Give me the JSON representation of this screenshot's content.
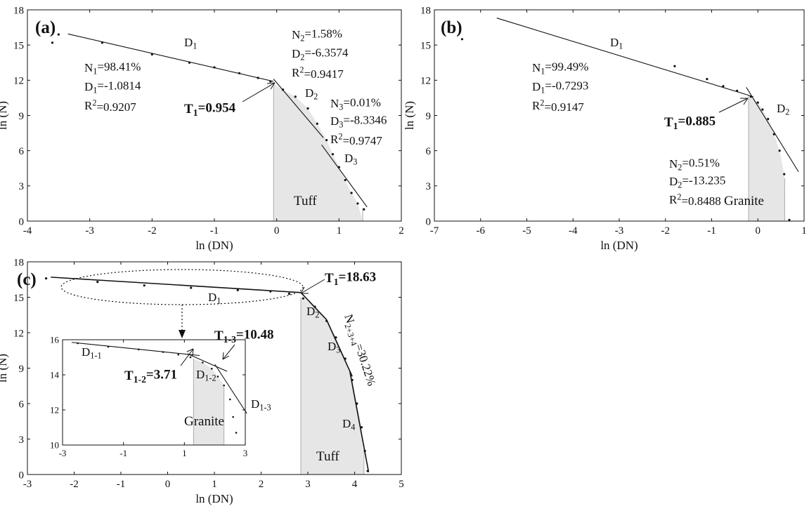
{
  "chart_data": [
    {
      "panel": "(a)",
      "type": "line",
      "xlabel": "ln (DN)",
      "ylabel": "ln (N)",
      "xlim": [
        -4,
        2
      ],
      "ylim": [
        0,
        18
      ],
      "xticks": [
        "-4",
        "-3",
        "-2",
        "-1",
        "0",
        "1",
        "2"
      ],
      "yticks": [
        "0",
        "3",
        "6",
        "9",
        "12",
        "15",
        "18"
      ],
      "points": [
        [
          -3.6,
          15.2
        ],
        [
          -3.5,
          15.9
        ],
        [
          -2.8,
          15.2
        ],
        [
          -2.0,
          14.2
        ],
        [
          -1.4,
          13.5
        ],
        [
          -1.0,
          13.1
        ],
        [
          -0.6,
          12.6
        ],
        [
          -0.3,
          12.2
        ],
        [
          -0.1,
          11.9
        ],
        [
          0.1,
          11.2
        ],
        [
          0.3,
          10.6
        ],
        [
          0.5,
          9.6
        ],
        [
          0.65,
          8.3
        ],
        [
          0.8,
          6.9
        ],
        [
          0.9,
          5.7
        ],
        [
          1.0,
          4.6
        ],
        [
          1.1,
          3.5
        ],
        [
          1.2,
          2.4
        ],
        [
          1.3,
          1.5
        ],
        [
          1.4,
          1.0
        ]
      ],
      "fits": [
        {
          "name": "D1",
          "x": [
            -3.35,
            -0.05
          ],
          "y": [
            15.95,
            11.9
          ]
        },
        {
          "name": "D2",
          "x": [
            -0.05,
            0.75
          ],
          "y": [
            12.1,
            7.1
          ]
        },
        {
          "name": "D3",
          "x": [
            0.72,
            1.45
          ],
          "y": [
            6.5,
            1.2
          ]
        }
      ],
      "threshold": {
        "label": "T1=0.954",
        "x": -0.05,
        "y": 11.9
      },
      "shade": {
        "x": [
          -0.05,
          1.38
        ],
        "rock": "Tuff"
      },
      "annotations": {
        "d1_label": "D1",
        "d2_label": "D2",
        "d3_label": "D3",
        "block1": [
          "N1=98.41%",
          "D1=-1.0814",
          "R2=0.9207"
        ],
        "block2": [
          "N2=1.58%",
          "D2=-6.3574",
          "R2=0.9417"
        ],
        "block3": [
          "N3=0.01%",
          "D3=-8.3346",
          "R2=0.9747"
        ]
      }
    },
    {
      "panel": "(b)",
      "type": "line",
      "xlabel": "ln (DN)",
      "ylabel": "ln (N)",
      "xlim": [
        -7,
        1
      ],
      "ylim": [
        0,
        18
      ],
      "xticks": [
        "-7",
        "-6",
        "-5",
        "-4",
        "-3",
        "-2",
        "-1",
        "0",
        "1"
      ],
      "yticks": [
        "0",
        "3",
        "6",
        "9",
        "12",
        "15",
        "18"
      ],
      "points": [
        [
          -6.4,
          15.5
        ],
        [
          -1.8,
          13.2
        ],
        [
          -1.1,
          12.1
        ],
        [
          -0.75,
          11.5
        ],
        [
          -0.45,
          11.1
        ],
        [
          -0.15,
          10.6
        ],
        [
          0.0,
          10.1
        ],
        [
          0.1,
          9.5
        ],
        [
          0.22,
          8.7
        ],
        [
          0.35,
          7.4
        ],
        [
          0.47,
          6.0
        ],
        [
          0.57,
          4.0
        ],
        [
          0.68,
          0.1
        ]
      ],
      "fits": [
        {
          "name": "D1",
          "x": [
            -5.65,
            -0.1
          ],
          "y": [
            17.3,
            10.6
          ]
        },
        {
          "name": "D2",
          "x": [
            -0.25,
            0.88
          ],
          "y": [
            11.4,
            4.2
          ]
        }
      ],
      "threshold": {
        "label": "T1=0.885",
        "x": -0.15,
        "y": 10.5
      },
      "shade": {
        "x": [
          -0.2,
          0.58
        ],
        "rock": "Granite"
      },
      "annotations": {
        "d1_label": "D1",
        "d2_label": "D2",
        "block1": [
          "N1=99.49%",
          "D1=-0.7293",
          "R2=0.9147"
        ],
        "block2": [
          "N2=0.51%",
          "D2=-13.235",
          "R2=0.8488"
        ]
      }
    },
    {
      "panel": "(c)",
      "type": "line",
      "xlabel": "ln (DN)",
      "ylabel": "ln (N)",
      "xlim": [
        -3,
        5
      ],
      "ylim": [
        0,
        18
      ],
      "xticks": [
        "-3",
        "-2",
        "-1",
        "0",
        "1",
        "2",
        "3",
        "4",
        "5"
      ],
      "yticks": [
        "0",
        "3",
        "6",
        "9",
        "12",
        "15",
        "18"
      ],
      "points": [
        [
          -2.6,
          16.6
        ],
        [
          -1.5,
          16.3
        ],
        [
          -0.5,
          16.0
        ],
        [
          0.5,
          15.8
        ],
        [
          1.5,
          15.6
        ],
        [
          2.2,
          15.5
        ],
        [
          2.6,
          15.3
        ],
        [
          2.9,
          14.9
        ],
        [
          3.15,
          14.2
        ],
        [
          3.4,
          13.0
        ],
        [
          3.6,
          11.6
        ],
        [
          3.8,
          9.8
        ],
        [
          3.95,
          8.0
        ],
        [
          4.05,
          6.0
        ],
        [
          4.15,
          4.0
        ],
        [
          4.22,
          2.0
        ],
        [
          4.28,
          0.3
        ]
      ],
      "fits": [
        {
          "name": "D1",
          "x": [
            -2.5,
            2.85
          ],
          "y": [
            16.7,
            15.4
          ]
        },
        {
          "name": "D2",
          "x": [
            2.85,
            3.4
          ],
          "y": [
            15.4,
            13.1
          ]
        },
        {
          "name": "D3",
          "x": [
            3.4,
            3.95
          ],
          "y": [
            13.1,
            8.3
          ]
        },
        {
          "name": "D4",
          "x": [
            3.9,
            4.3
          ],
          "y": [
            8.7,
            0.2
          ]
        }
      ],
      "threshold": {
        "label": "T1=18.63",
        "x": 2.85,
        "y": 15.4
      },
      "shade": {
        "x": [
          2.85,
          4.2
        ],
        "rock": "Tuff"
      },
      "annotations": {
        "d1_label": "D1",
        "d2_label": "D2",
        "d3_label": "D3",
        "d4_label": "D4",
        "n_label": "N2+3+4=30.22%"
      },
      "inset": {
        "xlim": [
          -3,
          3
        ],
        "ylim": [
          10,
          16
        ],
        "xticks": [
          "-3",
          "-1",
          "1",
          "3"
        ],
        "yticks": [
          "10",
          "12",
          "14",
          "16"
        ],
        "points": [
          [
            -2.5,
            15.8
          ],
          [
            -1.5,
            15.6
          ],
          [
            -0.5,
            15.45
          ],
          [
            0.3,
            15.3
          ],
          [
            0.8,
            15.15
          ],
          [
            1.2,
            15.0
          ],
          [
            1.6,
            14.7
          ],
          [
            1.9,
            14.35
          ],
          [
            2.1,
            13.9
          ],
          [
            2.3,
            13.4
          ],
          [
            2.5,
            12.6
          ],
          [
            2.6,
            11.6
          ],
          [
            2.7,
            10.7
          ]
        ],
        "fits": [
          {
            "name": "D1-1",
            "x": [
              -2.7,
              1.5
            ],
            "y": [
              15.85,
              15.1
            ]
          },
          {
            "name": "D1-2",
            "x": [
              1.1,
              2.4
            ],
            "y": [
              15.2,
              14.2
            ]
          },
          {
            "name": "D1-3",
            "x": [
              2.0,
              3.05
            ],
            "y": [
              14.6,
              11.8
            ]
          }
        ],
        "thresholds": [
          {
            "label": "T1-2=3.71",
            "x": 1.3,
            "y": 15.05
          },
          {
            "label": "T1-3=10.48",
            "x": 2.0,
            "y": 14.6
          }
        ],
        "shade": {
          "x": [
            1.3,
            2.3
          ],
          "rock": "Granite"
        },
        "labels": {
          "d11": "D1-1",
          "d12": "D1-2",
          "d13": "D1-3"
        }
      }
    }
  ]
}
